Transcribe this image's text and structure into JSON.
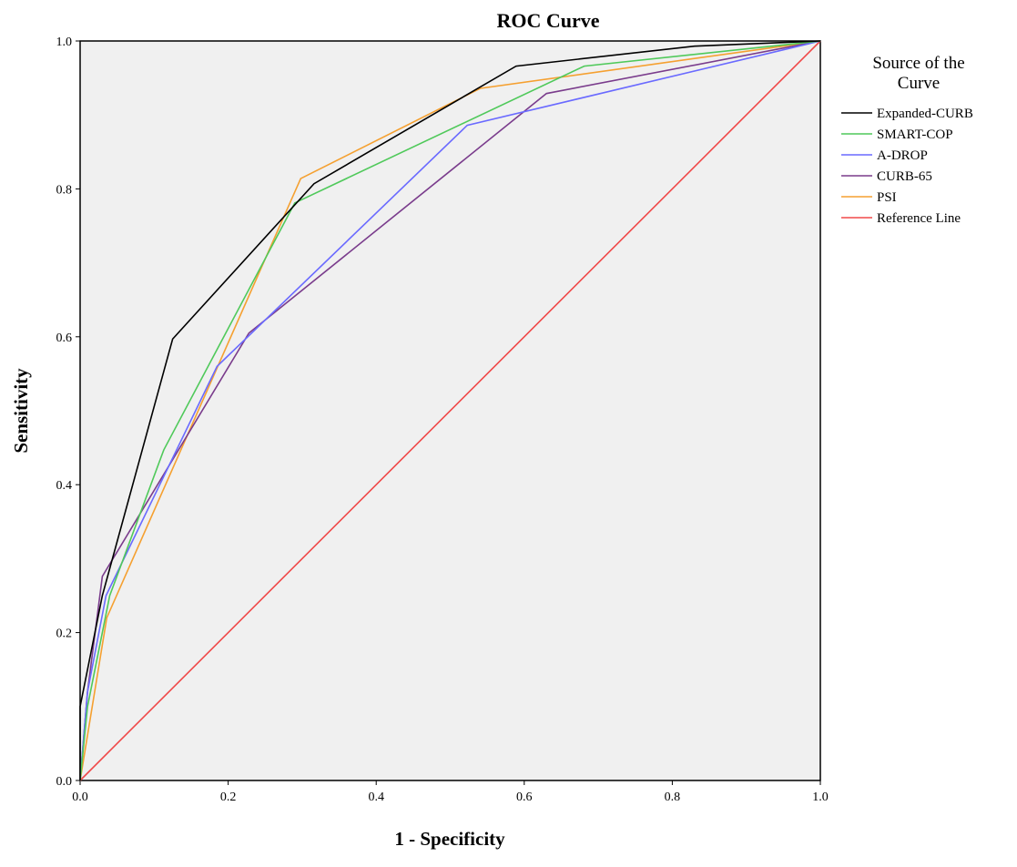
{
  "chart_data": {
    "type": "line",
    "title": "ROC Curve",
    "xlabel": "1 - Specificity",
    "ylabel": "Sensitivity",
    "xlim": [
      0,
      1
    ],
    "ylim": [
      0,
      1
    ],
    "xticks": [
      "0.0",
      "0.2",
      "0.4",
      "0.6",
      "0.8",
      "1.0"
    ],
    "yticks": [
      "0.0",
      "0.2",
      "0.4",
      "0.6",
      "0.8",
      "1.0"
    ],
    "grid": false,
    "background": "#f0f0f0",
    "legend": {
      "title": "Source of the Curve",
      "title_lines": [
        "Source of the",
        "Curve"
      ],
      "placement": "right"
    },
    "series": [
      {
        "name": "Expanded-CURB",
        "color": "#000000",
        "x": [
          0,
          0,
          0.03,
          0.125,
          0.316,
          0.589,
          0.83,
          1
        ],
        "y": [
          0,
          0.1,
          0.25,
          0.597,
          0.807,
          0.966,
          0.993,
          1
        ]
      },
      {
        "name": "SMART-COP",
        "color": "#4fc95a",
        "x": [
          0,
          0.01,
          0.04,
          0.113,
          0.29,
          0.681,
          1
        ],
        "y": [
          0,
          0.1,
          0.25,
          0.447,
          0.781,
          0.966,
          1
        ]
      },
      {
        "name": "A-DROP",
        "color": "#6a6aff",
        "x": [
          0,
          0.01,
          0.035,
          0.185,
          0.523,
          1
        ],
        "y": [
          0,
          0.12,
          0.25,
          0.56,
          0.886,
          1
        ]
      },
      {
        "name": "CURB-65",
        "color": "#7a3c8c",
        "x": [
          0,
          0.01,
          0.03,
          0.228,
          0.63,
          1
        ],
        "y": [
          0,
          0.12,
          0.276,
          0.605,
          0.929,
          1
        ]
      },
      {
        "name": "PSI",
        "color": "#f5a030",
        "x": [
          0,
          0.036,
          0.298,
          0.541,
          1
        ],
        "y": [
          0,
          0.22,
          0.814,
          0.936,
          1
        ]
      },
      {
        "name": "Reference Line",
        "color": "#f04848",
        "x": [
          0,
          1
        ],
        "y": [
          0,
          1
        ]
      }
    ]
  }
}
